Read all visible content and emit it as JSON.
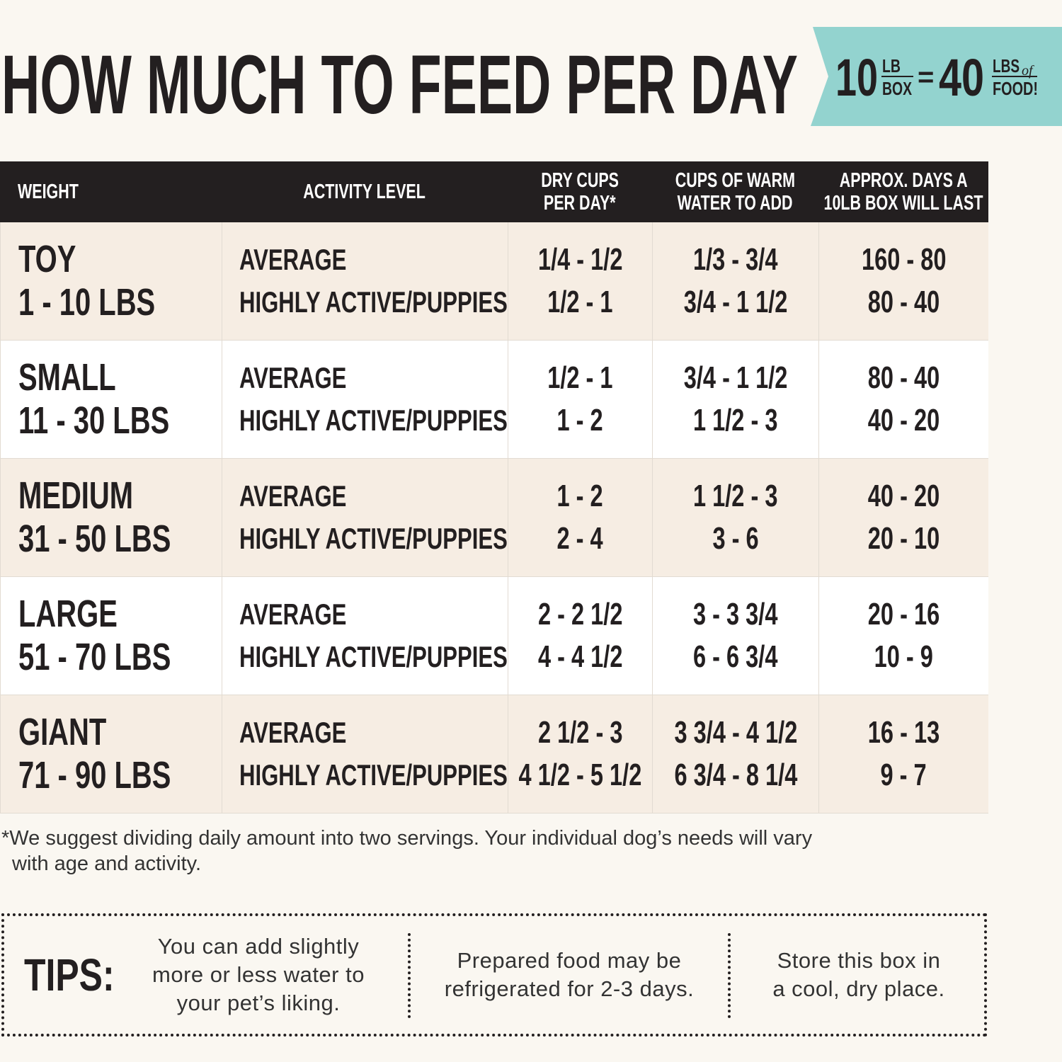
{
  "title": "HOW MUCH TO FEED PER DAY",
  "badge": {
    "box_number": "10",
    "box_unit_top": "LB",
    "box_unit_bottom": "BOX",
    "equals": "=",
    "food_number": "40",
    "food_unit_top": "LBS",
    "food_unit_of": "of",
    "food_unit_bottom": "FOOD!"
  },
  "table": {
    "headers": [
      [
        "WEIGHT"
      ],
      [
        "ACTIVITY LEVEL"
      ],
      [
        "DRY CUPS",
        "PER DAY*"
      ],
      [
        "CUPS OF WARM",
        "WATER TO ADD"
      ],
      [
        "APPROX. DAYS A",
        "10LB BOX WILL LAST"
      ]
    ],
    "rows": [
      [
        [
          "TOY",
          "1 - 10 LBS"
        ],
        [
          "AVERAGE",
          "HIGHLY ACTIVE/PUPPIES"
        ],
        [
          "1/4 - 1/2",
          "1/2 - 1"
        ],
        [
          "1/3 - 3/4",
          "3/4 - 1 1/2"
        ],
        [
          "160 - 80",
          "80 - 40"
        ]
      ],
      [
        [
          "SMALL",
          "11 - 30 LBS"
        ],
        [
          "AVERAGE",
          "HIGHLY ACTIVE/PUPPIES"
        ],
        [
          "1/2 - 1",
          "1 - 2"
        ],
        [
          "3/4 - 1 1/2",
          "1 1/2 - 3"
        ],
        [
          "80 - 40",
          "40 - 20"
        ]
      ],
      [
        [
          "MEDIUM",
          "31 - 50 LBS"
        ],
        [
          "AVERAGE",
          "HIGHLY ACTIVE/PUPPIES"
        ],
        [
          "1 - 2",
          "2 - 4"
        ],
        [
          "1 1/2 - 3",
          "3 - 6"
        ],
        [
          "40 - 20",
          "20 - 10"
        ]
      ],
      [
        [
          "LARGE",
          "51 - 70 LBS"
        ],
        [
          "AVERAGE",
          "HIGHLY ACTIVE/PUPPIES"
        ],
        [
          "2 - 2 1/2",
          "4 - 4 1/2"
        ],
        [
          "3 - 3 3/4",
          "6 - 6 3/4"
        ],
        [
          "20 - 16",
          "10 - 9"
        ]
      ],
      [
        [
          "GIANT",
          "71 - 90 LBS"
        ],
        [
          "AVERAGE",
          "HIGHLY ACTIVE/PUPPIES"
        ],
        [
          "2 1/2 - 3",
          "4 1/2 - 5 1/2"
        ],
        [
          "3 3/4 - 4 1/2",
          "6 3/4 - 8 1/4"
        ],
        [
          "16 - 13",
          "9 - 7"
        ]
      ]
    ]
  },
  "footnote": [
    "*We suggest dividing daily amount into two servings. Your individual dog’s needs will vary",
    "with age and activity."
  ],
  "tips": {
    "label": "TIPS:",
    "items": [
      [
        "You can add slightly",
        "more or less water to",
        "your pet’s liking."
      ],
      [
        "Prepared food may be",
        "refrigerated for 2-3 days."
      ],
      [
        "Store this box in",
        "a cool, dry place."
      ]
    ]
  }
}
